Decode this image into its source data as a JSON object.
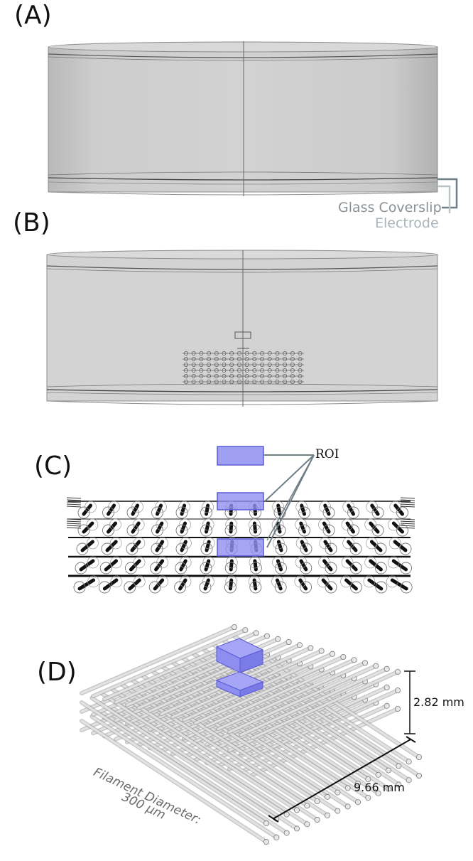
{
  "panels": {
    "a": {
      "label": "(A)"
    },
    "b": {
      "label": "(B)"
    },
    "c": {
      "label": "(C)"
    },
    "d": {
      "label": "(D)"
    }
  },
  "annotations": {
    "glass_coverslip": "Glass Coverslip",
    "electrode": "Electrode",
    "roi": "ROI",
    "height_dim": "2.82 mm",
    "width_dim": "9.66 mm",
    "filament_line1": "Filament Diameter:",
    "filament_line2": "300  µm"
  },
  "colors": {
    "roi_fill": "#8e8ef0",
    "roi_stroke": "#5a5ad6",
    "bracket_dark": "#6f7f86",
    "bracket_light": "#b9c4c8",
    "chamber_fill": "#cfcfcf",
    "annotation_gray": "#8a9196"
  }
}
